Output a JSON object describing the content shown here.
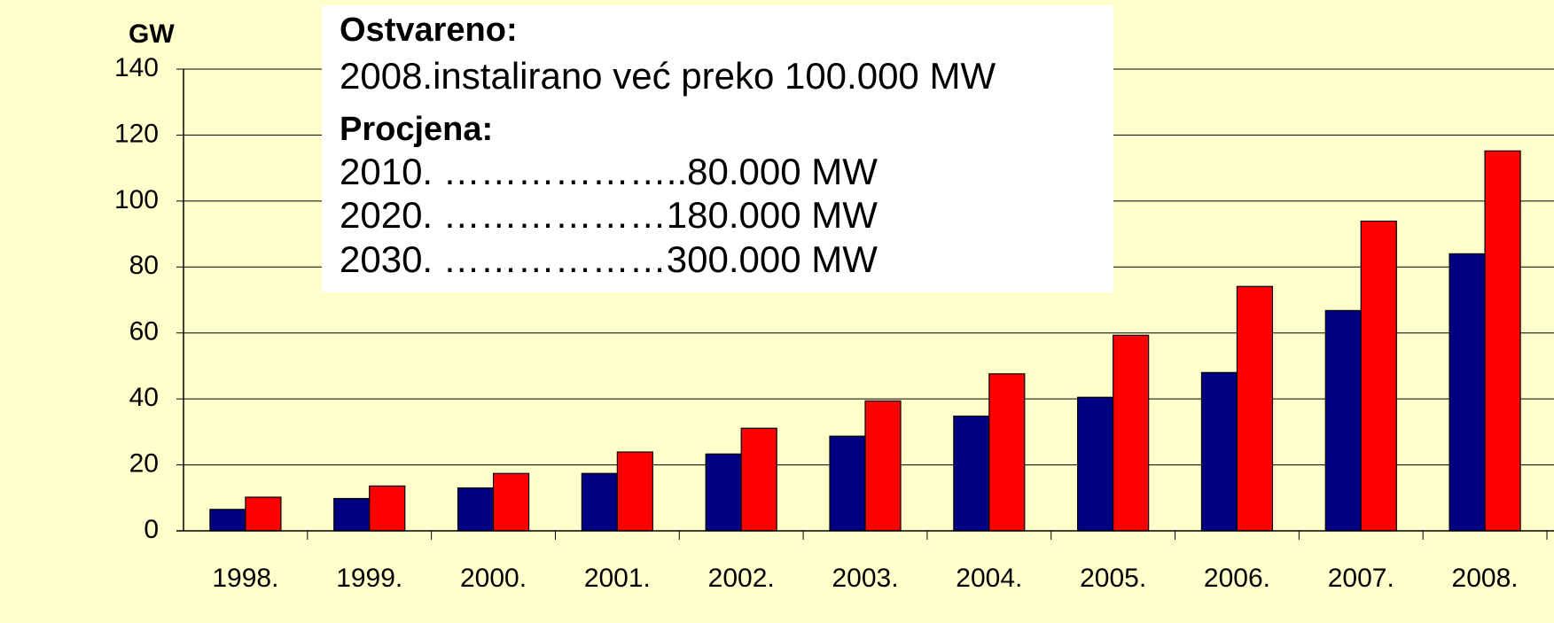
{
  "chart_data": {
    "type": "bar",
    "y_label": "GW",
    "categories": [
      "1998.",
      "1999.",
      "2000.",
      "2001.",
      "2002.",
      "2003.",
      "2004.",
      "2005.",
      "2006.",
      "2007.",
      "2008."
    ],
    "series": [
      {
        "color": "#000080",
        "values": [
          6.5,
          9.8,
          13,
          17.4,
          23.3,
          28.7,
          34.8,
          40.5,
          48,
          66.8,
          84
        ]
      },
      {
        "color": "#ff0000",
        "values": [
          10.2,
          13.6,
          17.4,
          23.9,
          31.1,
          39.4,
          47.6,
          59.3,
          74.1,
          93.9,
          115.2
        ]
      }
    ],
    "ylim": [
      0,
      140
    ],
    "yticks": [
      0,
      20,
      40,
      60,
      80,
      100,
      120,
      140
    ],
    "grid": true,
    "annotation": {
      "achieved_heading": "Ostvareno:",
      "achieved": "2008.instalirano već preko 100.000 MW",
      "estimate_heading": "Procjena:",
      "estimates": [
        "2010. ………………..80.000 MW",
        "2020. ………………180.000 MW",
        "2030. ………………300.000 MW"
      ]
    }
  }
}
